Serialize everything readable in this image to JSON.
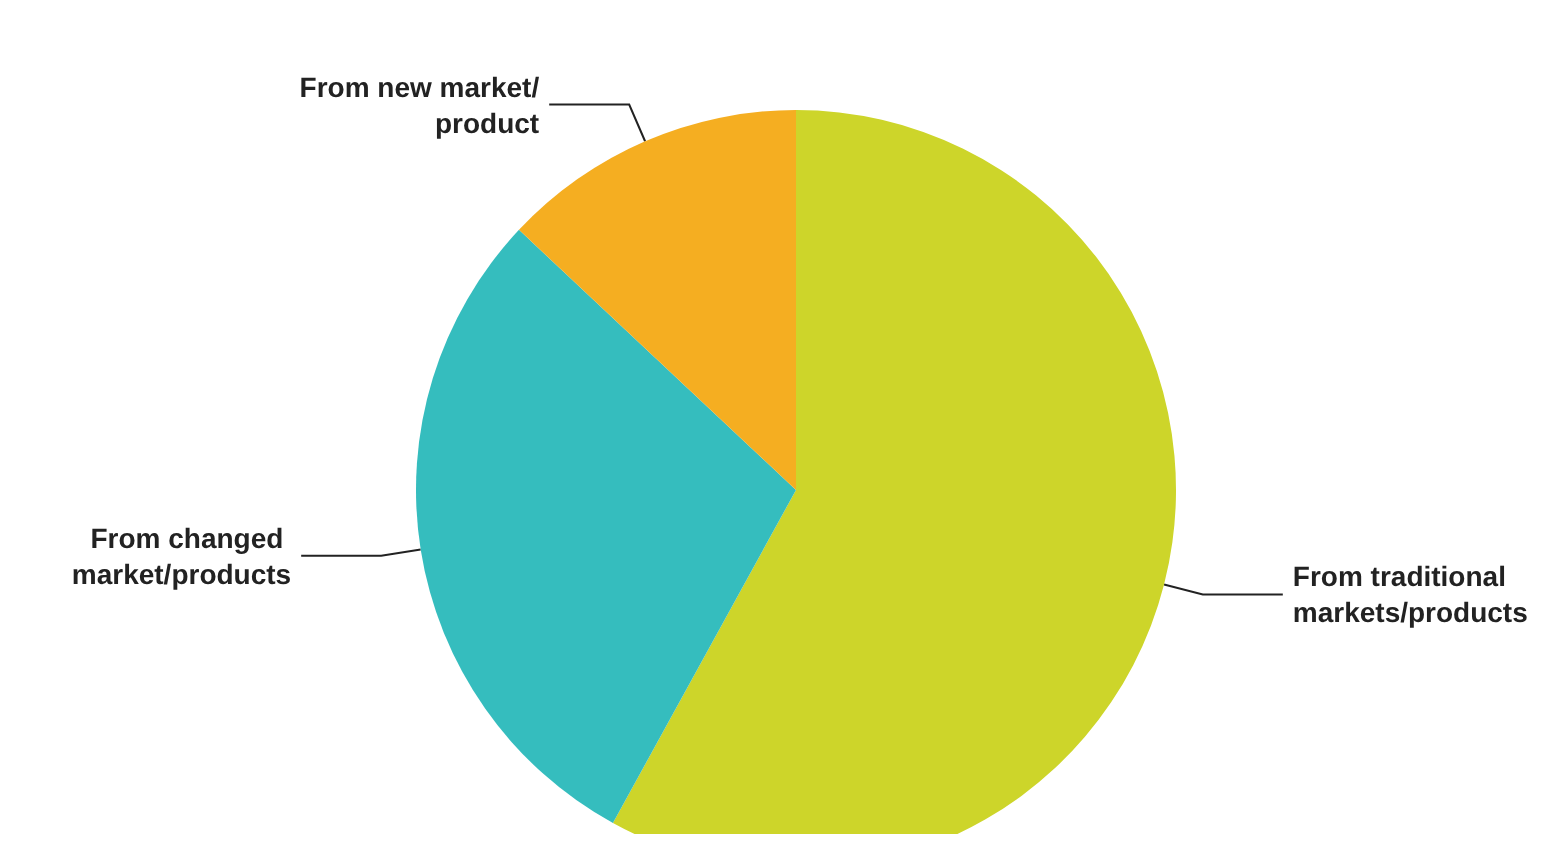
{
  "chart_data": {
    "type": "pie",
    "categories": [
      "From traditional markets/products",
      "From changed market/products",
      "From new market/product"
    ],
    "values": [
      58,
      29,
      13
    ],
    "colors": [
      "#cdd52a",
      "#35bdbe",
      "#f5ae21"
    ],
    "legend": false
  }
}
